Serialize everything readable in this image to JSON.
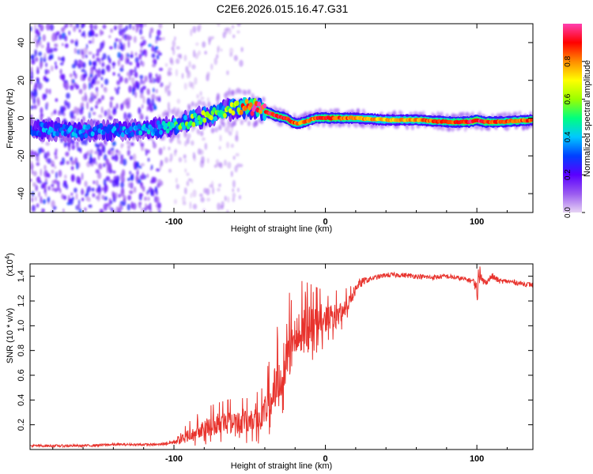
{
  "title": "C2E6.2026.015.16.47.G31",
  "chart_data": [
    {
      "type": "heatmap",
      "title": "C2E6.2026.015.16.47.G31",
      "xlabel": "Height of straight line (km)",
      "ylabel": "Frequency (Hz)",
      "xlim": [
        -195,
        137
      ],
      "ylim": [
        -50,
        50
      ],
      "xticks": [
        -100,
        0,
        100
      ],
      "yticks": [
        -40,
        -20,
        0,
        20,
        40
      ],
      "xtick_labels": [
        "-100",
        "0",
        "100"
      ],
      "ytick_labels": [
        "-40",
        "-20",
        "0",
        "20",
        "40"
      ],
      "colorbar": {
        "label": "Normalized spectral amplitude",
        "range": [
          0,
          1
        ],
        "ticks": [
          0.0,
          0.2,
          0.4,
          0.6,
          0.8
        ],
        "tick_labels": [
          "0.0",
          "0.2",
          "0.4",
          "0.6",
          "0.8"
        ],
        "colormap": "rainbow",
        "colors": [
          "#e7d4f4",
          "#9a5af0",
          "#5a00ff",
          "#0040ff",
          "#00c8ff",
          "#00ff7f",
          "#9aff00",
          "#ffff00",
          "#ff8c00",
          "#ff0000",
          "#ff3fb0"
        ]
      },
      "ridge": {
        "x": [
          -195,
          -180,
          -160,
          -140,
          -120,
          -105,
          -95,
          -85,
          -75,
          -65,
          -58,
          -52,
          -45,
          -38,
          -32,
          -26,
          -22,
          -18,
          -14,
          -10,
          -6,
          -2,
          5,
          20,
          40,
          60,
          80,
          95,
          100,
          105,
          115,
          137
        ],
        "freq": [
          -6,
          -6,
          -7,
          -7,
          -6,
          -5,
          -3,
          0,
          2,
          4,
          6,
          6,
          5,
          3,
          1,
          0,
          -2,
          -3,
          -2,
          -1,
          0,
          0,
          0,
          0,
          -1,
          -1,
          -2,
          -2,
          -1,
          -2,
          -2,
          -1
        ],
        "amplitude": [
          0.3,
          0.35,
          0.35,
          0.35,
          0.35,
          0.4,
          0.5,
          0.55,
          0.55,
          0.55,
          0.6,
          0.88,
          0.92,
          0.92,
          0.9,
          0.9,
          0.85,
          0.82,
          0.82,
          0.8,
          0.85,
          0.9,
          0.88,
          0.8,
          0.75,
          0.8,
          0.85,
          0.9,
          0.95,
          0.9,
          0.85,
          0.85
        ]
      }
    },
    {
      "type": "line",
      "xlabel": "Height of straight line (km)",
      "ylabel": "SNR (10 * v/v)",
      "exponent_label": "(x10",
      "exponent_power": "4",
      "exponent_close": ")",
      "xlim": [
        -195,
        137
      ],
      "ylim": [
        0,
        1.5
      ],
      "xticks": [
        -100,
        0,
        100
      ],
      "xtick_labels": [
        "-100",
        "0",
        "100"
      ],
      "yticks": [
        0.2,
        0.4,
        0.6,
        0.8,
        1.0,
        1.2,
        1.4
      ],
      "ytick_labels": [
        "0.2",
        "0.4",
        "0.6",
        "0.8",
        "1.0",
        "1.2",
        "1.4"
      ],
      "series": [
        {
          "name": "SNR",
          "color": "#e8332d",
          "x": [
            -195,
            -180,
            -160,
            -140,
            -120,
            -110,
            -100,
            -90,
            -80,
            -70,
            -60,
            -50,
            -42,
            -35,
            -30,
            -25,
            -20,
            -15,
            -10,
            -5,
            0,
            5,
            10,
            15,
            20,
            25,
            30,
            40,
            50,
            60,
            70,
            80,
            90,
            98,
            100,
            102,
            104,
            106,
            110,
            115,
            120,
            130,
            137
          ],
          "values": [
            0.03,
            0.03,
            0.03,
            0.04,
            0.04,
            0.04,
            0.06,
            0.12,
            0.18,
            0.2,
            0.22,
            0.22,
            0.26,
            0.42,
            0.62,
            0.78,
            0.88,
            0.95,
            1.0,
            1.02,
            1.05,
            1.08,
            1.1,
            1.18,
            1.3,
            1.36,
            1.38,
            1.41,
            1.41,
            1.4,
            1.39,
            1.4,
            1.38,
            1.36,
            1.3,
            1.4,
            1.36,
            1.35,
            1.4,
            1.36,
            1.36,
            1.34,
            1.33
          ],
          "noise": [
            0.01,
            0.01,
            0.01,
            0.01,
            0.01,
            0.01,
            0.02,
            0.08,
            0.12,
            0.14,
            0.15,
            0.15,
            0.18,
            0.3,
            0.36,
            0.36,
            0.34,
            0.32,
            0.26,
            0.22,
            0.18,
            0.16,
            0.14,
            0.1,
            0.06,
            0.03,
            0.02,
            0.02,
            0.02,
            0.02,
            0.02,
            0.02,
            0.02,
            0.02,
            0.1,
            0.06,
            0.04,
            0.02,
            0.03,
            0.02,
            0.02,
            0.02,
            0.02
          ]
        }
      ]
    }
  ]
}
